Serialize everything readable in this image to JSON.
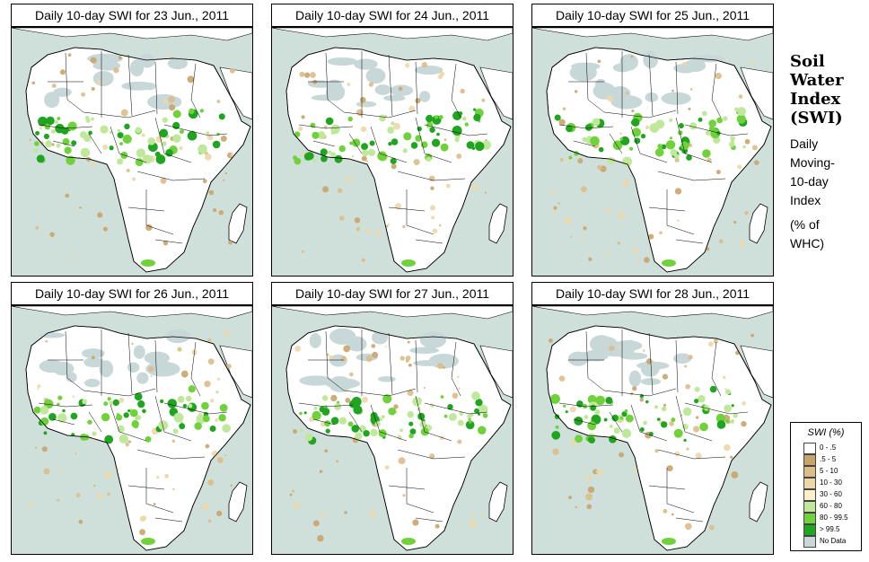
{
  "panels": [
    {
      "title": "Daily 10-day SWI for  23 Jun., 2011",
      "variant": 0
    },
    {
      "title": "Daily 10-day SWI for  24 Jun., 2011",
      "variant": 1
    },
    {
      "title": "Daily 10-day SWI for  25 Jun., 2011",
      "variant": 2
    },
    {
      "title": "Daily 10-day SWI for  26 Jun., 2011",
      "variant": 3
    },
    {
      "title": "Daily 10-day SWI for  27 Jun., 2011",
      "variant": 4
    },
    {
      "title": "Daily 10-day SWI for  28 Jun., 2011",
      "variant": 5
    }
  ],
  "side": {
    "title_lines": [
      "Soil",
      "Water",
      "Index",
      "(SWI)"
    ],
    "subtitle_lines": [
      "Daily",
      "Moving-",
      "10-day",
      "Index"
    ],
    "unit_lines": [
      "(% of",
      " WHC)"
    ]
  },
  "legend": {
    "title": "SWI (%)",
    "items": [
      {
        "label": "0 - .5",
        "color": "#ffffff"
      },
      {
        "label": ".5 - 5",
        "color": "#c9a46a"
      },
      {
        "label": "5 - 10",
        "color": "#dcbc88"
      },
      {
        "label": "10 - 30",
        "color": "#ecd7a8"
      },
      {
        "label": "30 - 60",
        "color": "#f7f0c8"
      },
      {
        "label": "60 - 80",
        "color": "#bfe89a"
      },
      {
        "label": "80 - 99.5",
        "color": "#6fd23a"
      },
      {
        "label": "> 99.5",
        "color": "#1fa51f"
      },
      {
        "label": "No Data",
        "color": "#c8d8d8"
      }
    ]
  },
  "colors": {
    "ocean": "#cfe0da",
    "land": "#ffffff",
    "border": "#000000",
    "no_data": "#c8d8d8"
  }
}
